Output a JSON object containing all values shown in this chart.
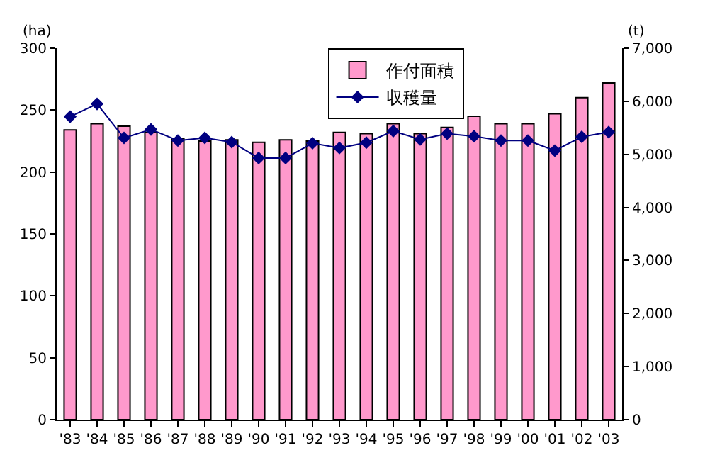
{
  "chart_data": {
    "type": "bar",
    "ylabel": "(ha)",
    "y2label": "(t)",
    "categories": [
      "'83",
      "'84",
      "'85",
      "'86",
      "'87",
      "'88",
      "'89",
      "'90",
      "'91",
      "'92",
      "'93",
      "'94",
      "'95",
      "'96",
      "'97",
      "'98",
      "'99",
      "'00",
      "'01",
      "'02",
      "'03"
    ],
    "series": [
      {
        "name": "作付面積",
        "color": "#ff99cc",
        "values": [
          234,
          239,
          237,
          232,
          227,
          225,
          226,
          224,
          226,
          225,
          232,
          231,
          239,
          231,
          236,
          245,
          239,
          239,
          247,
          260,
          272
        ]
      },
      {
        "name": "収穫量",
        "type": "line",
        "axis": "y2",
        "color": "#000080",
        "marker": "diamond",
        "values": [
          5710,
          5950,
          5310,
          5470,
          5260,
          5310,
          5230,
          4930,
          4930,
          5210,
          5120,
          5220,
          5440,
          5280,
          5390,
          5340,
          5260,
          5260,
          5070,
          5330,
          5420
        ]
      }
    ],
    "ylim": [
      0,
      300
    ],
    "yticks": [
      0,
      50,
      100,
      150,
      200,
      250,
      300
    ],
    "y2lim": [
      0,
      7000
    ],
    "y2ticks": [
      {
        "value": 0,
        "label": "0"
      },
      {
        "value": 1000,
        "label": "1,000"
      },
      {
        "value": 2000,
        "label": "2,000"
      },
      {
        "value": 3000,
        "label": "3,000"
      },
      {
        "value": 4000,
        "label": "4,000"
      },
      {
        "value": 5000,
        "label": "5,000"
      },
      {
        "value": 6000,
        "label": "6,000"
      },
      {
        "value": 7000,
        "label": "7,000"
      }
    ],
    "legend": "top right"
  }
}
